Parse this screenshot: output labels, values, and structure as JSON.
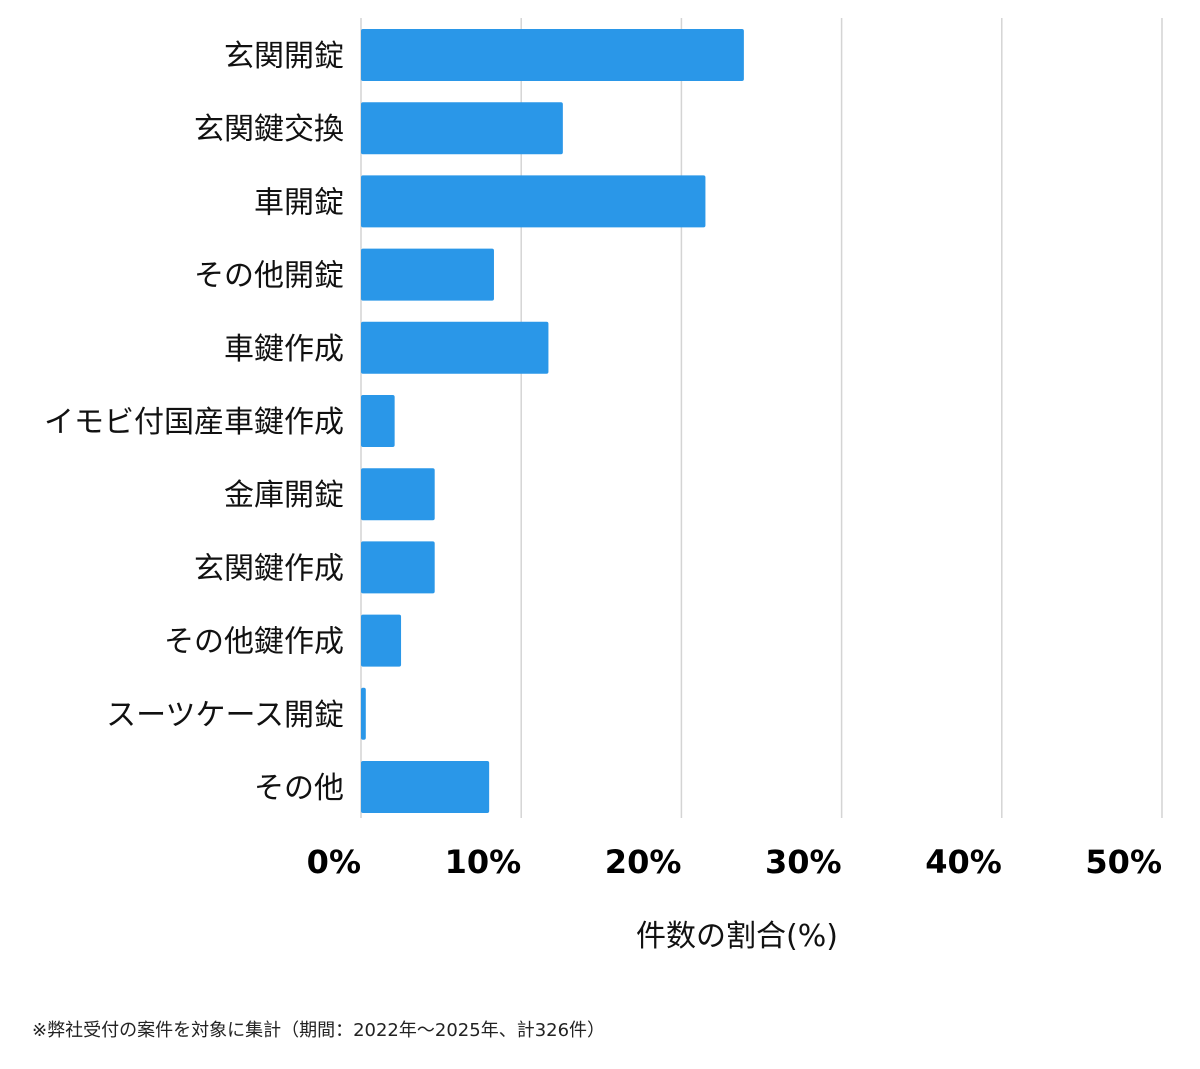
{
  "chart_data": {
    "type": "bar",
    "orientation": "horizontal",
    "categories": [
      "玄関開錠",
      "玄関鍵交換",
      "車開錠",
      "その他開錠",
      "車鍵作成",
      "イモビ付国産車鍵作成",
      "金庫開錠",
      "玄関鍵作成",
      "その他鍵作成",
      "スーツケース開錠",
      "その他"
    ],
    "values": [
      23.9,
      12.6,
      21.5,
      8.3,
      11.7,
      2.1,
      4.6,
      4.6,
      2.5,
      0.3,
      8.0
    ],
    "xlabel": "件数の割合(%)",
    "ylabel": "",
    "xlim": [
      0,
      50
    ],
    "xticks": [
      0,
      10,
      20,
      30,
      40,
      50
    ],
    "xtick_labels": [
      "0%",
      "10%",
      "20%",
      "30%",
      "40%",
      "50%"
    ],
    "grid": true,
    "bar_color": "#2a97e8",
    "grid_color": "#d4d4d4"
  },
  "footnote": "※弊社受付の案件を対象に集計（期間：2022年〜2025年、計326件）"
}
